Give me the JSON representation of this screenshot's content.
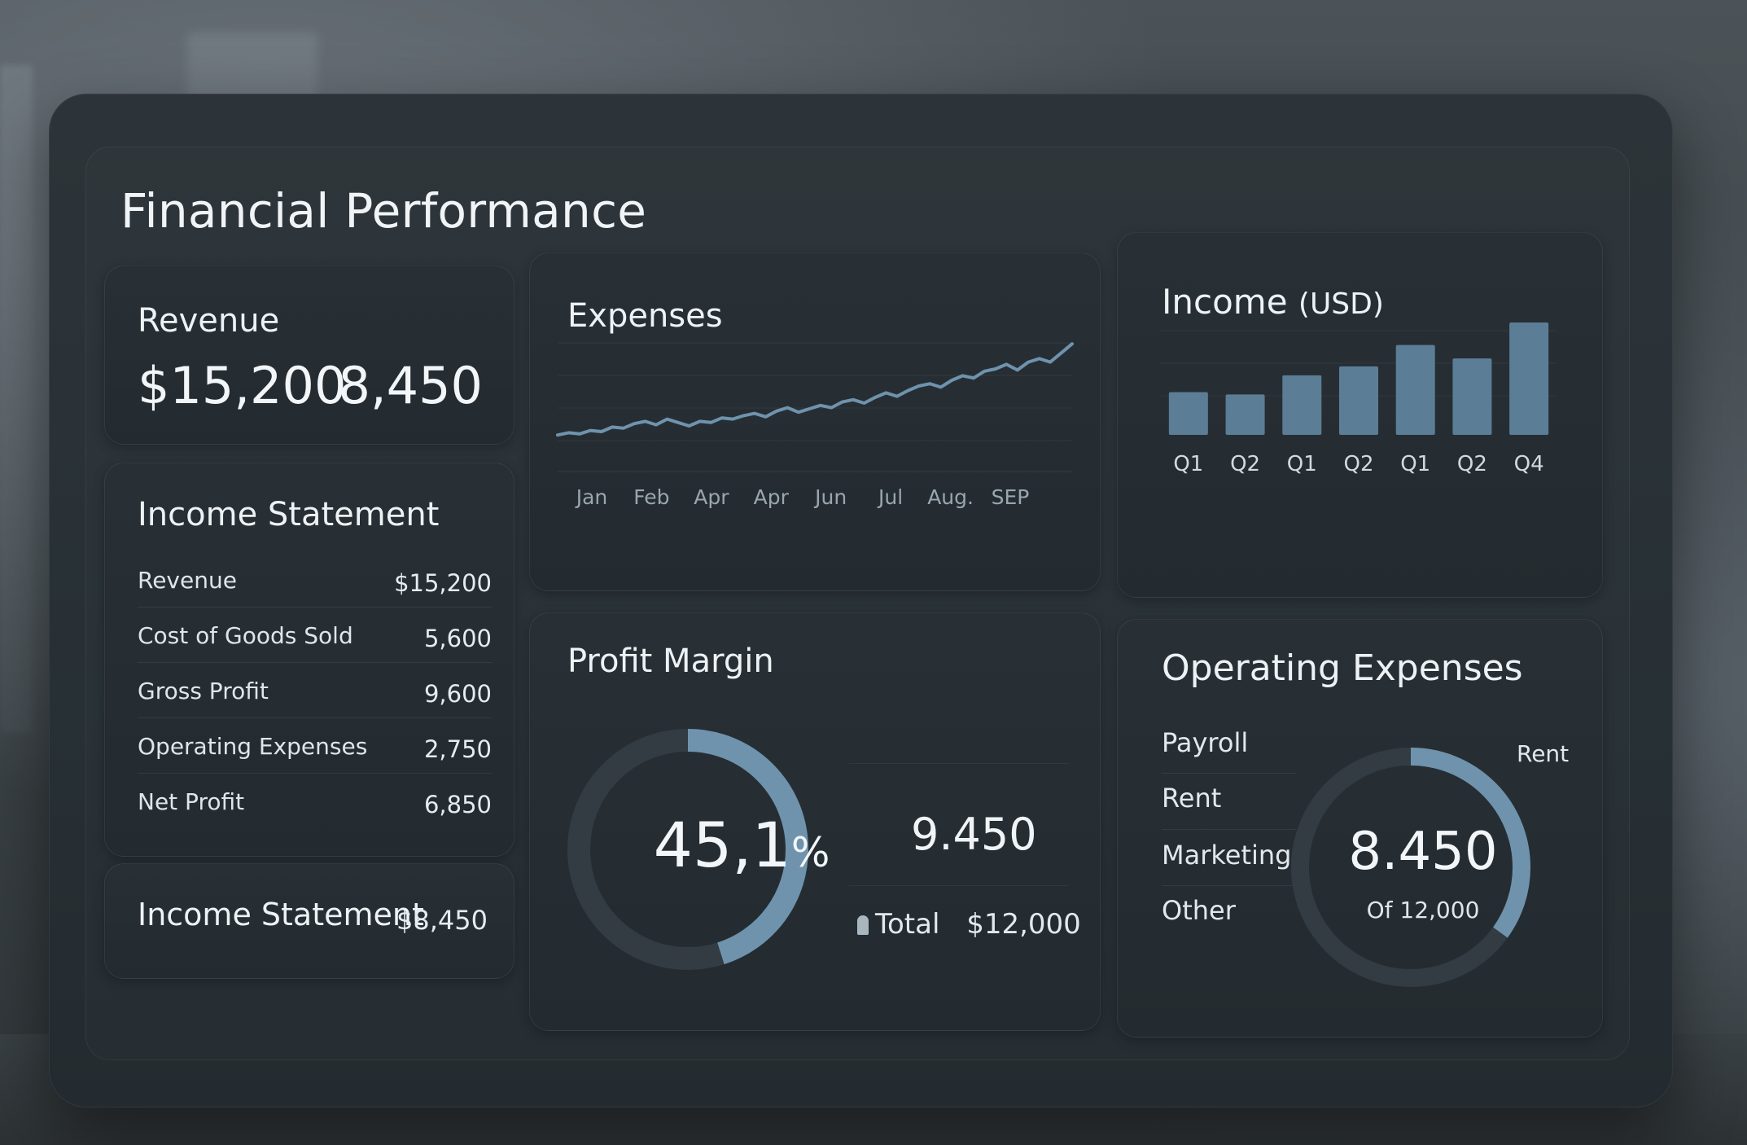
{
  "dashboard": {
    "title": "Financial Performance"
  },
  "revenue_card": {
    "title": "Revenue",
    "amount": "$15,200",
    "secondary": "8,450"
  },
  "income_statement": {
    "title": "Income Statement",
    "rows": [
      {
        "label": "Revenue",
        "value": "$15,200"
      },
      {
        "label": "Cost of Goods Sold",
        "value": "5,600"
      },
      {
        "label": "Gross Profit",
        "value": "9,600"
      },
      {
        "label": "Operating Expenses",
        "value": "2,750"
      },
      {
        "label": "Net Profit",
        "value": "6,850"
      }
    ]
  },
  "income_summary": {
    "title": "Income Statement",
    "value": "$8,450"
  },
  "profit_margin": {
    "title": "Profit Margin",
    "percent_label": "45,1",
    "percent_sign": "%",
    "fill_fraction": 0.451,
    "value": "9.450",
    "total_label": "Total",
    "total_value": "$12,000"
  },
  "operating_expenses": {
    "title": "Operating Expenses",
    "items": [
      "Payroll",
      "Rent",
      "Marketing",
      "Other"
    ],
    "ring_label": "Rent",
    "center_value": "8.450",
    "center_sub": "Of 12,000",
    "fill_fraction": 0.35
  },
  "colors": {
    "accent": "#6f93ad",
    "bar": "#5c7d96",
    "track": "#333c42"
  },
  "chart_data": [
    {
      "type": "line",
      "title": "Expenses",
      "x_tick_labels": [
        "Jan",
        "Feb",
        "Apr",
        "Apr",
        "Jun",
        "Jul",
        "Aug.",
        "SEP"
      ],
      "ylabel": "",
      "grid": true,
      "series": [
        {
          "values": [
            12,
            14,
            13,
            16,
            15,
            19,
            18,
            22,
            24,
            21,
            26,
            23,
            20,
            24,
            23,
            27,
            26,
            29,
            31,
            28,
            33,
            36,
            32,
            35,
            38,
            36,
            41,
            43,
            40,
            45,
            49,
            46,
            51,
            55,
            57,
            54,
            60,
            64,
            62,
            68,
            70,
            74,
            69,
            76,
            79,
            76,
            84,
            92
          ]
        }
      ],
      "ylim": [
        0,
        100
      ]
    },
    {
      "type": "bar",
      "title": "Income",
      "title_unit": "(USD)",
      "categories": [
        "Q1",
        "Q2",
        "Q1",
        "Q2",
        "Q1",
        "Q2",
        "Q4"
      ],
      "values": [
        38,
        36,
        53,
        61,
        80,
        68,
        100
      ],
      "ylim": [
        0,
        100
      ],
      "grid": true
    }
  ]
}
